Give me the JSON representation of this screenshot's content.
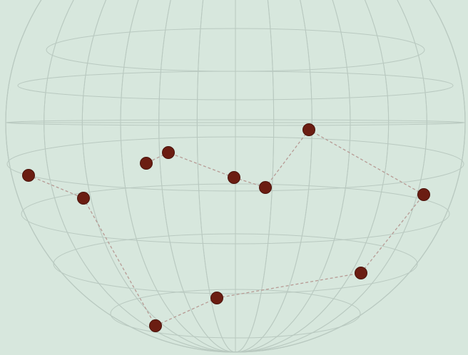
{
  "scene": {
    "background_color": "#d7e7dd",
    "grid_color": "#b9c9c0",
    "connector_color": "#b79b95",
    "marker_color": "#6b1d12",
    "marker_stroke": "#4a120b",
    "meridian_count": 13,
    "parallel_count": 7,
    "route_segments": [
      {
        "from": "start",
        "to": "left-upper-node"
      },
      {
        "from": "left-upper-node",
        "to": "bottom-left-node"
      },
      {
        "from": "bottom-left-node",
        "to": "bottom-center-node"
      },
      {
        "from": "bottom-center-node",
        "to": "bottom-right-node"
      },
      {
        "from": "bottom-right-node",
        "to": "right-edge-node"
      },
      {
        "from": "right-edge-node",
        "to": "upper-right-node"
      },
      {
        "from": "upper-right-node",
        "to": "middle-right-node"
      },
      {
        "from": "middle-right-node",
        "to": "middle-center-node"
      },
      {
        "from": "middle-center-node",
        "to": "upper-left-node-b"
      },
      {
        "from": "upper-left-node-b",
        "to": "upper-left-node-a"
      }
    ]
  }
}
